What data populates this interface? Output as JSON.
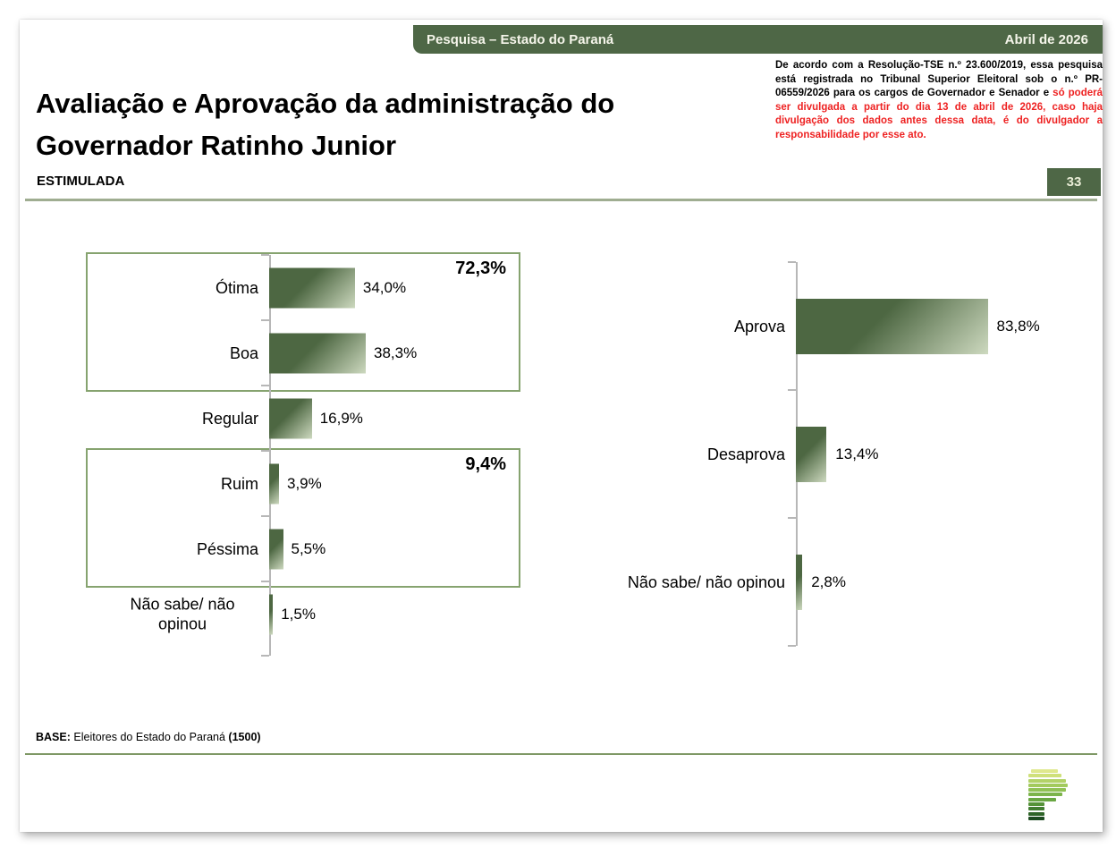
{
  "page": {
    "header_bar": {
      "title": "Pesquisa – Estado do Paraná",
      "date": "Abril de 2026"
    },
    "title": "Avaliação e Aprovação da administração do Governador Ratinho Junior",
    "subtitle": "ESTIMULADA",
    "legal_notice": {
      "registered_part": "De acordo com a Resolução-TSE n.º 23.600/2019, essa pesquisa está registrada no Tribunal Superior Eleitoral sob o n.º PR-06559/2026 para os cargos de Governador e Senador e ",
      "restricted_part": "só poderá ser divulgada a partir do dia 13 de abril de 2026, caso haja divulgação dos dados antes dessa data, é do divulgador a responsabilidade por esse ato."
    },
    "page_number": "33",
    "footer": {
      "base_label": "BASE:",
      "base_text": " Eleitores do Estado do Paraná ",
      "base_count": "(1500)"
    }
  },
  "chart_data": [
    {
      "type": "bar",
      "orientation": "horizontal",
      "categories": [
        "Ótima",
        "Boa",
        "Regular",
        "Ruim",
        "Péssima",
        "Não sabe/ não opinou"
      ],
      "values": [
        34.0,
        38.3,
        16.9,
        3.9,
        5.5,
        1.5
      ],
      "value_labels": [
        "34,0%",
        "38,3%",
        "16,9%",
        "3,9%",
        "5,5%",
        "1,5%"
      ],
      "groups": [
        {
          "label": "72,3%",
          "value": 72.3,
          "from_index": 0,
          "to_index": 1
        },
        {
          "label": "9,4%",
          "value": 9.4,
          "from_index": 3,
          "to_index": 4
        }
      ],
      "xlim": [
        0,
        100
      ],
      "unit": "%",
      "grid": false,
      "legend": false
    },
    {
      "type": "bar",
      "orientation": "horizontal",
      "categories": [
        "Aprova",
        "Desaprova",
        "Não sabe/ não opinou"
      ],
      "values": [
        83.8,
        13.4,
        2.8
      ],
      "value_labels": [
        "83,8%",
        "13,4%",
        "2,8%"
      ],
      "xlim": [
        0,
        100
      ],
      "unit": "%",
      "grid": false,
      "legend": false
    }
  ],
  "logo": {
    "name": "parana-pesquisas-letter-p-logo",
    "bars": [
      {
        "w": 30,
        "x": 3,
        "c": "#dfe88d"
      },
      {
        "w": 37,
        "x": 0,
        "c": "#cfe07a"
      },
      {
        "w": 42,
        "x": 0,
        "c": "#b2d268"
      },
      {
        "w": 44,
        "x": 0,
        "c": "#a2ca5d"
      },
      {
        "w": 42,
        "x": 0,
        "c": "#90c155"
      },
      {
        "w": 38,
        "x": 0,
        "c": "#7cb44b"
      },
      {
        "w": 31,
        "x": 0,
        "c": "#69a642"
      },
      {
        "w": 18,
        "x": 0,
        "c": "#559238"
      },
      {
        "w": 18,
        "x": 0,
        "c": "#427d31"
      },
      {
        "w": 18,
        "x": 0,
        "c": "#2f6428"
      },
      {
        "w": 18,
        "x": 0,
        "c": "#1d4a20"
      }
    ]
  },
  "colors": {
    "brand_green": "#4e6746",
    "bar_dark": "#4d6742",
    "bar_light": "#cdd9bf",
    "group_box_border": "#86a36f",
    "legal_warning_red": "#ee2222",
    "axis_gray": "#b7b7b7",
    "title_separator": "#9fad91",
    "footer_line": "#7e9865"
  }
}
